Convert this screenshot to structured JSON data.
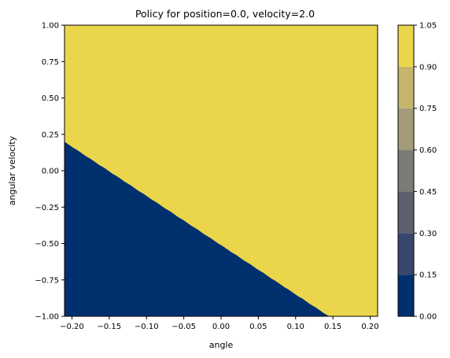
{
  "chart_data": {
    "type": "heatmap",
    "title": "Policy for position=0.0, velocity=2.0",
    "xlabel": "angle",
    "ylabel": "angular velocity",
    "xlim": [
      -0.21,
      0.21
    ],
    "ylim": [
      -1.0,
      1.0
    ],
    "xticks": [
      -0.2,
      -0.15,
      -0.1,
      -0.05,
      0.0,
      0.05,
      0.1,
      0.15,
      0.2
    ],
    "xtick_labels": [
      "−0.20",
      "−0.15",
      "−0.10",
      "−0.05",
      "0.00",
      "0.05",
      "0.10",
      "0.15",
      "0.20"
    ],
    "yticks": [
      -1.0,
      -0.75,
      -0.5,
      -0.25,
      0.0,
      0.25,
      0.5,
      0.75,
      1.0
    ],
    "ytick_labels": [
      "−1.00",
      "−0.75",
      "−0.50",
      "−0.25",
      "0.00",
      "0.25",
      "0.50",
      "0.75",
      "1.00"
    ],
    "colormap": "cividis",
    "decision_boundary": {
      "description": "policy = 0 below line, 1 above",
      "points": [
        [
          -0.21,
          0.2
        ],
        [
          0.145,
          -1.0
        ]
      ]
    },
    "regions": [
      {
        "value": 0,
        "color": "#00306e"
      },
      {
        "value": 1,
        "color": "#ebd54a"
      }
    ],
    "colorbar": {
      "levels": [
        0.0,
        0.15,
        0.3,
        0.45,
        0.6,
        0.75,
        0.9,
        1.05
      ],
      "tick_labels": [
        "0.00",
        "0.15",
        "0.30",
        "0.45",
        "0.60",
        "0.75",
        "0.90",
        "1.05"
      ],
      "colors": [
        "#00306e",
        "#38476b",
        "#5e616d",
        "#7c7b78",
        "#a49b78",
        "#c5b66b",
        "#ebd54a"
      ]
    }
  }
}
